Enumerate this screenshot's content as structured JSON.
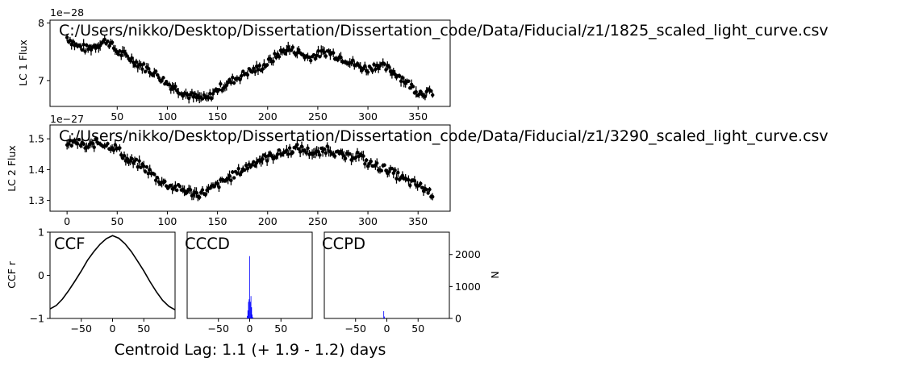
{
  "chart_data": [
    {
      "type": "scatter",
      "panel": "lc1",
      "title": "C:/Users/nikko/Desktop/Dissertation/Dissertation_code/Data/Fiducial/z1/1825_scaled_light_curve.csv",
      "xlabel": "",
      "ylabel": "LC 1 Flux",
      "y_offset_label": "1e−28",
      "xlim": [
        -17,
        382
      ],
      "ylim": [
        6.55,
        8.05
      ],
      "xticks": [
        50,
        100,
        150,
        200,
        250,
        300,
        350
      ],
      "yticks": [
        7,
        8
      ],
      "error_bars": true,
      "marker_color": "#000000",
      "series": [
        {
          "x": [
            0,
            10,
            20,
            30,
            40,
            50,
            60,
            70,
            80,
            90,
            100,
            110,
            120,
            130,
            140,
            150,
            160,
            170,
            180,
            190,
            200,
            210,
            220,
            230,
            240,
            250,
            260,
            270,
            280,
            290,
            300,
            310,
            320,
            330,
            340,
            350,
            360,
            365
          ],
          "y": [
            7.75,
            7.6,
            7.55,
            7.62,
            7.7,
            7.5,
            7.42,
            7.3,
            7.2,
            7.1,
            6.95,
            6.85,
            6.75,
            6.7,
            6.68,
            6.85,
            6.95,
            7.05,
            7.15,
            7.2,
            7.3,
            7.45,
            7.55,
            7.5,
            7.4,
            7.45,
            7.5,
            7.42,
            7.35,
            7.25,
            7.2,
            7.28,
            7.2,
            7.1,
            6.95,
            6.8,
            6.78,
            6.8
          ]
        }
      ]
    },
    {
      "type": "scatter",
      "panel": "lc2",
      "title": "C:/Users/nikko/Desktop/Dissertation/Dissertation_code/Data/Fiducial/z1/3290_scaled_light_curve.csv",
      "xlabel": "",
      "ylabel": "LC 2 Flux",
      "y_offset_label": "1e−27",
      "xlim": [
        -17,
        382
      ],
      "ylim": [
        1.265,
        1.545
      ],
      "xticks": [
        0,
        50,
        100,
        150,
        200,
        250,
        300,
        350
      ],
      "yticks": [
        1.3,
        1.4,
        1.5
      ],
      "error_bars": true,
      "marker_color": "#000000",
      "series": [
        {
          "x": [
            0,
            10,
            20,
            30,
            40,
            50,
            60,
            70,
            80,
            90,
            100,
            110,
            120,
            130,
            140,
            150,
            160,
            170,
            180,
            190,
            200,
            210,
            220,
            230,
            240,
            250,
            260,
            270,
            280,
            290,
            300,
            310,
            320,
            330,
            340,
            350,
            360,
            365
          ],
          "y": [
            1.48,
            1.49,
            1.47,
            1.49,
            1.48,
            1.47,
            1.43,
            1.42,
            1.4,
            1.37,
            1.35,
            1.34,
            1.33,
            1.32,
            1.33,
            1.35,
            1.37,
            1.39,
            1.41,
            1.43,
            1.44,
            1.45,
            1.46,
            1.47,
            1.46,
            1.45,
            1.47,
            1.45,
            1.44,
            1.45,
            1.42,
            1.41,
            1.4,
            1.38,
            1.36,
            1.35,
            1.33,
            1.32
          ]
        }
      ]
    },
    {
      "type": "line",
      "panel": "ccf",
      "title": "CCF",
      "xlabel": "",
      "ylabel": "CCF r",
      "xlim": [
        -100,
        100
      ],
      "ylim": [
        -1,
        1
      ],
      "xticks": [
        -50,
        0,
        50
      ],
      "yticks": [
        -1,
        0,
        1
      ],
      "line_color": "#000000",
      "series": [
        {
          "x": [
            -100,
            -90,
            -80,
            -70,
            -60,
            -50,
            -40,
            -30,
            -20,
            -10,
            0,
            10,
            20,
            30,
            40,
            50,
            60,
            70,
            80,
            90,
            100
          ],
          "y": [
            -0.78,
            -0.7,
            -0.55,
            -0.35,
            -0.13,
            0.1,
            0.35,
            0.55,
            0.72,
            0.85,
            0.92,
            0.86,
            0.73,
            0.55,
            0.33,
            0.1,
            -0.15,
            -0.38,
            -0.58,
            -0.72,
            -0.8
          ]
        }
      ]
    },
    {
      "type": "bar",
      "panel": "cccd",
      "title": "CCCD",
      "xlabel": "",
      "ylabel": "",
      "xlim": [
        -100,
        100
      ],
      "ylim": [
        0,
        2700
      ],
      "xticks": [
        -50,
        0,
        50
      ],
      "bar_color": "#0000ff",
      "series": [
        {
          "x": [
            -4,
            -3,
            -2,
            -1,
            0,
            1,
            2,
            3,
            4,
            5
          ],
          "y": [
            80,
            250,
            520,
            600,
            1950,
            520,
            700,
            350,
            120,
            40
          ]
        }
      ]
    },
    {
      "type": "bar",
      "panel": "ccpd",
      "title": "CCPD",
      "xlabel": "",
      "ylabel": "N",
      "xlim": [
        -100,
        100
      ],
      "ylim": [
        0,
        2700
      ],
      "xticks": [
        -50,
        0,
        50
      ],
      "yticks": [
        0,
        1000,
        2000
      ],
      "bar_color": "#0000ff",
      "series": [
        {
          "x": [
            -5,
            -4
          ],
          "y": [
            230,
            60
          ]
        }
      ]
    }
  ],
  "footer": {
    "centroid_text": "Centroid Lag:   1.1 (+  1.9 -  1.2) days"
  }
}
